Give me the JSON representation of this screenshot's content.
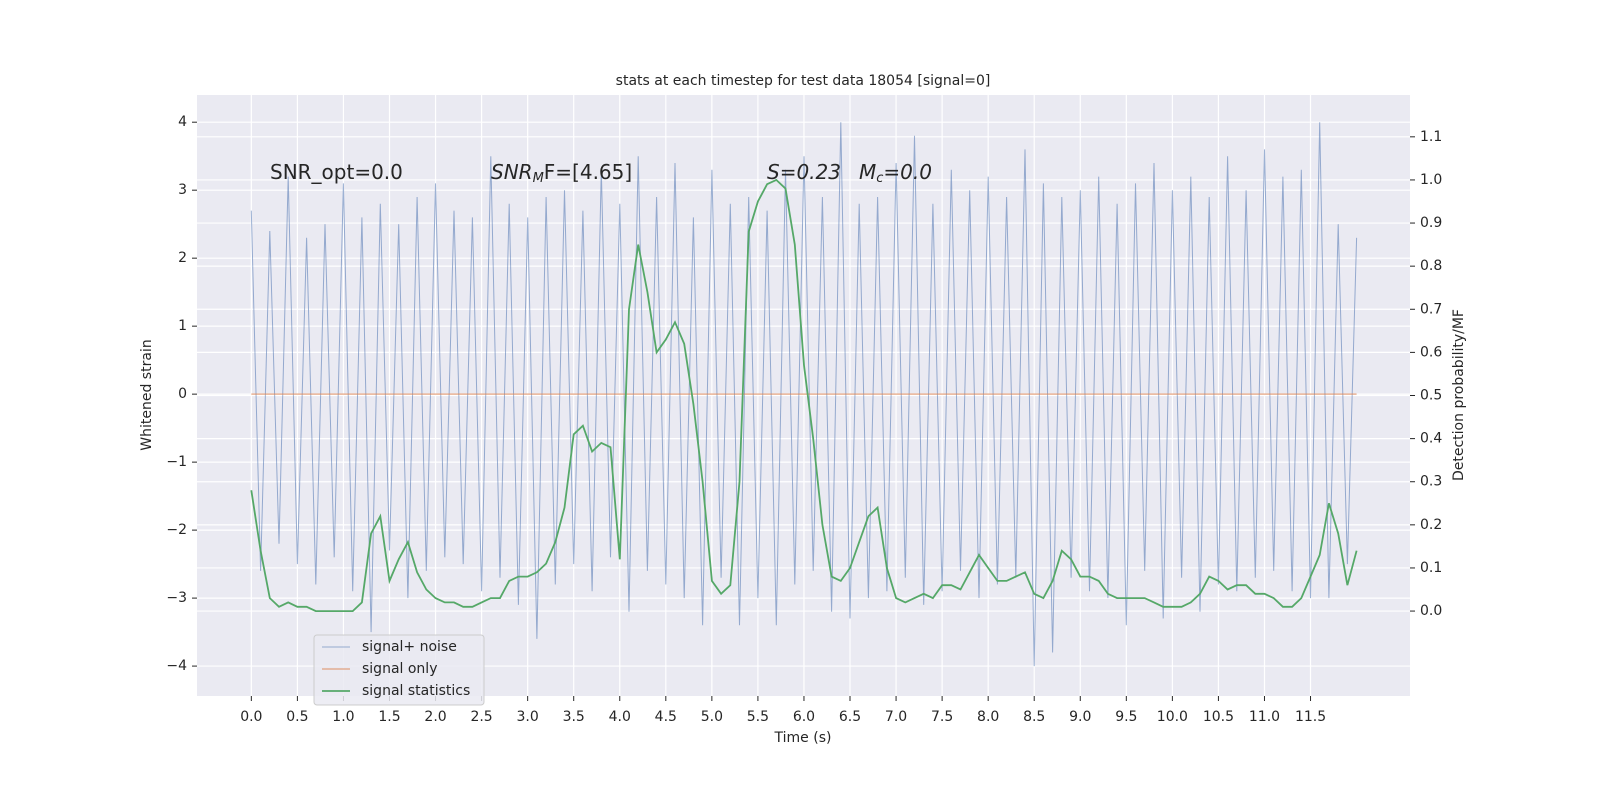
{
  "chart_data": {
    "type": "line",
    "title": "stats at each timestep for test data 18054 [signal=0]",
    "xlabel": "Time (s)",
    "ylabel": "Whitened strain",
    "y2label": "Detection probability/MF",
    "annotations": [
      [
        "SNR_opt=0.0"
      ],
      [
        "SNR",
        "M",
        "F=[4.65]"
      ],
      [
        "S=0.23"
      ],
      [
        "M",
        "c",
        "=0.0"
      ]
    ],
    "grid": true,
    "legend": "lower left",
    "xlim": [
      -0.59,
      12.58
    ],
    "ylim": [
      -4.44,
      4.4
    ],
    "y2lim": [
      -0.197,
      1.197
    ],
    "xticks": [
      {
        "value": 0,
        "label": "0.0"
      },
      0.5,
      {
        "value": 1,
        "label": "1.0"
      },
      1.5,
      {
        "value": 2,
        "label": "2.0"
      },
      2.5,
      {
        "value": 3,
        "label": "3.0"
      },
      3.5,
      {
        "value": 4,
        "label": "4.0"
      },
      4.5,
      {
        "value": 5,
        "label": "5.0"
      },
      5.5,
      {
        "value": 6,
        "label": "6.0"
      },
      6.5,
      {
        "value": 7,
        "label": "7.0"
      },
      7.5,
      {
        "value": 8,
        "label": "8.0"
      },
      8.5,
      {
        "value": 9,
        "label": "9.0"
      },
      9.5,
      {
        "value": 10,
        "label": "10.0"
      },
      10.5,
      {
        "value": 11,
        "label": "11.0"
      },
      11.5
    ],
    "yticks": [
      {
        "value": -4,
        "label": "−4"
      },
      {
        "value": -3,
        "label": "−3"
      },
      {
        "value": -2,
        "label": "−2"
      },
      {
        "value": -1,
        "label": "−1"
      },
      0,
      1,
      2,
      3,
      4
    ],
    "y2ticks": [
      {
        "value": 0,
        "label": "0.0"
      },
      0.1,
      0.2,
      0.3,
      0.4,
      0.5,
      0.6,
      0.7,
      0.8,
      0.9,
      {
        "value": 1,
        "label": "1.0"
      },
      1.1
    ],
    "x": [
      0.0,
      0.1,
      0.2,
      0.3,
      0.4,
      0.5,
      0.6,
      0.7,
      0.8,
      0.9,
      1.0,
      1.1,
      1.2,
      1.3,
      1.4,
      1.5,
      1.6,
      1.7,
      1.8,
      1.9,
      2.0,
      2.1,
      2.2,
      2.3,
      2.4,
      2.5,
      2.6,
      2.7,
      2.8,
      2.9,
      3.0,
      3.1,
      3.2,
      3.3,
      3.4,
      3.5,
      3.6,
      3.7,
      3.8,
      3.9,
      4.0,
      4.1,
      4.2,
      4.3,
      4.4,
      4.5,
      4.6,
      4.7,
      4.8,
      4.9,
      5.0,
      5.1,
      5.2,
      5.3,
      5.4,
      5.5,
      5.6,
      5.7,
      5.8,
      5.9,
      6.0,
      6.1,
      6.2,
      6.3,
      6.4,
      6.5,
      6.6,
      6.7,
      6.8,
      6.9,
      7.0,
      7.1,
      7.2,
      7.3,
      7.4,
      7.5,
      7.6,
      7.7,
      7.8,
      7.9,
      8.0,
      8.1,
      8.2,
      8.3,
      8.4,
      8.5,
      8.6,
      8.7,
      8.8,
      8.9,
      9.0,
      9.1,
      9.2,
      9.3,
      9.4,
      9.5,
      9.6,
      9.7,
      9.8,
      9.9,
      10.0,
      10.1,
      10.2,
      10.3,
      10.4,
      10.5,
      10.6,
      10.7,
      10.8,
      10.9,
      11.0,
      11.1,
      11.2,
      11.3,
      11.4,
      11.5,
      11.6,
      11.7,
      11.8,
      11.9,
      12.0
    ],
    "series": [
      {
        "name": "signal+ noise",
        "color": "#4c72b0",
        "values": [
          2.7,
          -2.6,
          2.4,
          -2.2,
          3.2,
          -2.5,
          2.3,
          -2.8,
          2.5,
          -2.4,
          3.1,
          -2.9,
          2.6,
          -3.5,
          2.8,
          -2.3,
          2.5,
          -3.0,
          2.9,
          -2.6,
          3.1,
          -2.4,
          2.7,
          -2.5,
          2.6,
          -2.9,
          3.5,
          -2.7,
          2.8,
          -3.1,
          2.6,
          -3.6,
          2.9,
          -2.8,
          3.0,
          -2.5,
          2.7,
          -2.9,
          3.3,
          -2.4,
          2.8,
          -3.2,
          3.5,
          -2.6,
          2.9,
          -2.8,
          3.4,
          -3.0,
          2.6,
          -3.4,
          3.3,
          -2.7,
          2.8,
          -3.4,
          2.9,
          -3.0,
          2.7,
          -3.4,
          3.3,
          -2.8,
          3.5,
          -2.6,
          2.9,
          -3.2,
          4.0,
          -3.3,
          2.8,
          -3.0,
          2.9,
          -2.9,
          3.4,
          -2.7,
          3.8,
          -3.1,
          2.8,
          -2.9,
          3.3,
          -2.6,
          3.0,
          -3.0,
          3.2,
          -2.8,
          2.9,
          -2.7,
          3.6,
          -4.0,
          3.1,
          -3.8,
          2.9,
          -2.7,
          3.0,
          -2.9,
          3.2,
          -3.0,
          2.8,
          -3.4,
          3.1,
          -2.6,
          3.4,
          -3.3,
          3.0,
          -2.7,
          3.2,
          -3.2,
          2.9,
          -2.8,
          3.5,
          -2.9,
          3.0,
          -2.7,
          3.6,
          -2.6,
          3.2,
          -2.9,
          3.3,
          -3.0,
          4.0,
          -3.0,
          2.5,
          -2.5,
          2.3
        ]
      },
      {
        "name": "signal only",
        "color": "#dd8452",
        "values": [
          0,
          0,
          0,
          0,
          0,
          0,
          0,
          0,
          0,
          0,
          0,
          0,
          0,
          0,
          0,
          0,
          0,
          0,
          0,
          0,
          0,
          0,
          0,
          0,
          0,
          0,
          0,
          0,
          0,
          0,
          0,
          0,
          0,
          0,
          0,
          0,
          0,
          0,
          0,
          0,
          0,
          0,
          0,
          0,
          0,
          0,
          0,
          0,
          0,
          0,
          0,
          0,
          0,
          0,
          0,
          0,
          0,
          0,
          0,
          0,
          0,
          0,
          0,
          0,
          0,
          0,
          0,
          0,
          0,
          0,
          0,
          0,
          0,
          0,
          0,
          0,
          0,
          0,
          0,
          0,
          0,
          0,
          0,
          0,
          0,
          0,
          0,
          0,
          0,
          0,
          0,
          0,
          0,
          0,
          0,
          0,
          0,
          0,
          0,
          0,
          0,
          0,
          0,
          0,
          0,
          0,
          0,
          0,
          0,
          0,
          0,
          0,
          0,
          0,
          0,
          0,
          0,
          0,
          0,
          0,
          0
        ]
      },
      {
        "name": "signal statistics",
        "color": "#55a868",
        "axis": "y2",
        "values": [
          0.28,
          0.14,
          0.03,
          0.01,
          0.02,
          0.01,
          0.01,
          0.0,
          0.0,
          0.0,
          0.0,
          0.0,
          0.02,
          0.18,
          0.22,
          0.07,
          0.12,
          0.16,
          0.09,
          0.05,
          0.03,
          0.02,
          0.02,
          0.01,
          0.01,
          0.02,
          0.03,
          0.03,
          0.07,
          0.08,
          0.08,
          0.09,
          0.11,
          0.16,
          0.24,
          0.41,
          0.43,
          0.37,
          0.39,
          0.38,
          0.12,
          0.7,
          0.85,
          0.74,
          0.6,
          0.63,
          0.67,
          0.62,
          0.48,
          0.3,
          0.07,
          0.04,
          0.06,
          0.3,
          0.88,
          0.95,
          0.99,
          1.0,
          0.98,
          0.85,
          0.57,
          0.4,
          0.2,
          0.08,
          0.07,
          0.1,
          0.16,
          0.22,
          0.24,
          0.1,
          0.03,
          0.02,
          0.03,
          0.04,
          0.03,
          0.06,
          0.06,
          0.05,
          0.09,
          0.13,
          0.1,
          0.07,
          0.07,
          0.08,
          0.09,
          0.04,
          0.03,
          0.07,
          0.14,
          0.12,
          0.08,
          0.08,
          0.07,
          0.04,
          0.03,
          0.03,
          0.03,
          0.03,
          0.02,
          0.01,
          0.01,
          0.01,
          0.02,
          0.04,
          0.08,
          0.07,
          0.05,
          0.06,
          0.06,
          0.04,
          0.04,
          0.03,
          0.01,
          0.01,
          0.03,
          0.08,
          0.13,
          0.25,
          0.18,
          0.06,
          0.14
        ]
      }
    ]
  }
}
